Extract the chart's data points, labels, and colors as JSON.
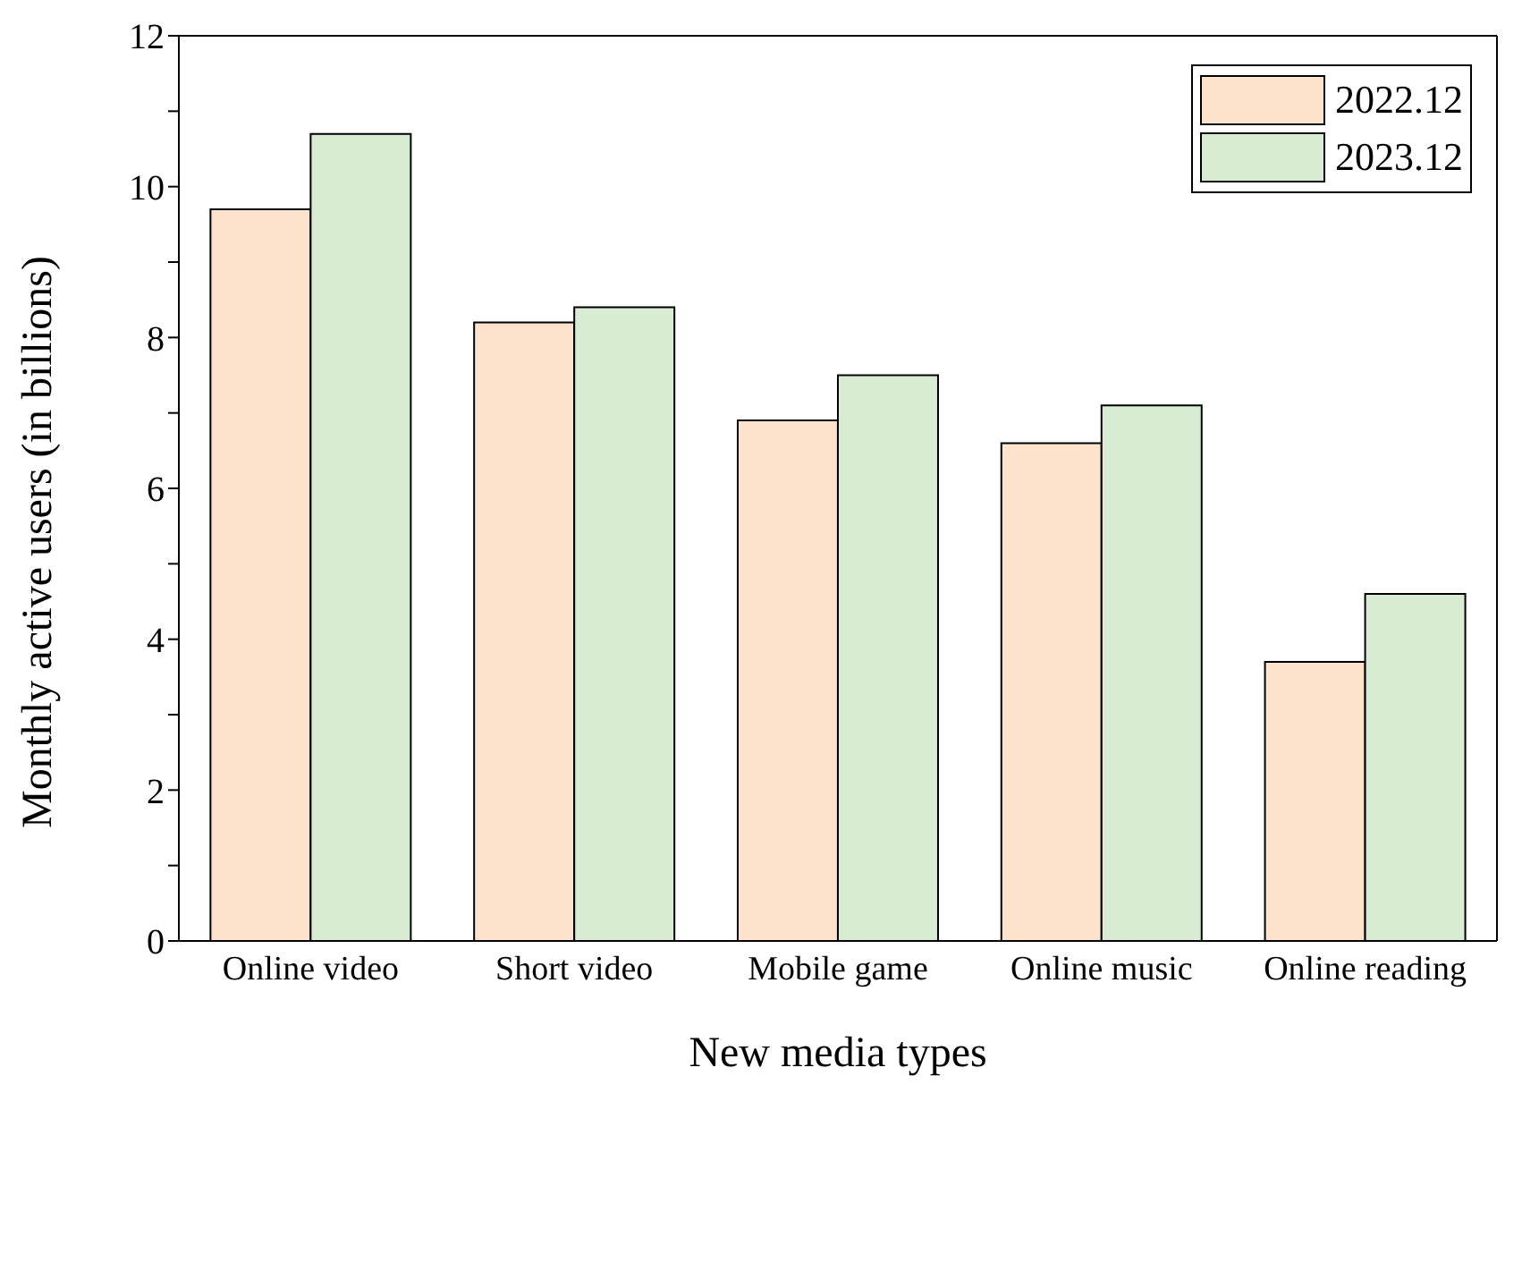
{
  "chart_data": {
    "type": "bar",
    "xlabel": "New media types",
    "ylabel": "Monthly active users (in billions)",
    "categories": [
      "Online video",
      "Short video",
      "Mobile game",
      "Online music",
      "Online reading"
    ],
    "series": [
      {
        "name": "2022.12",
        "color": "#fde2cc",
        "values": [
          9.7,
          8.2,
          6.9,
          6.6,
          3.7
        ]
      },
      {
        "name": "2023.12",
        "color": "#d8ebd3",
        "values": [
          10.7,
          8.4,
          7.5,
          7.1,
          4.6
        ]
      }
    ],
    "ylim": [
      0,
      12
    ],
    "yticks": [
      0,
      {
        "value": 1,
        "label": null
      },
      2,
      {
        "value": 3,
        "label": null
      },
      4,
      {
        "value": 5,
        "label": null
      },
      6,
      {
        "value": 7,
        "label": null
      },
      8,
      {
        "value": 9,
        "label": null
      },
      10,
      {
        "value": 11,
        "label": null
      },
      12
    ],
    "legend": "top right"
  }
}
